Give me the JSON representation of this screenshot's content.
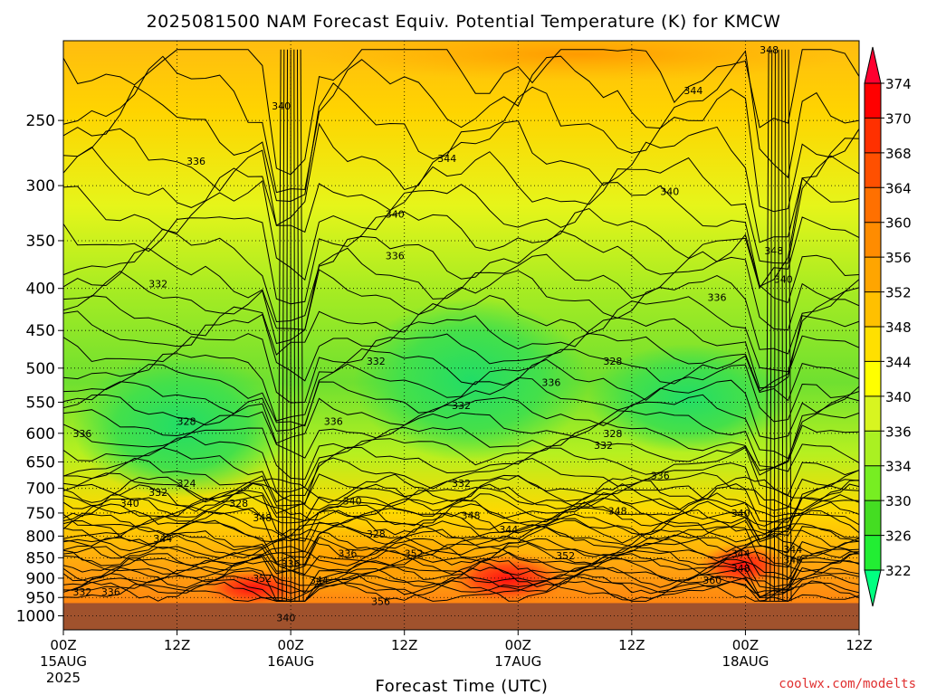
{
  "chart_data": {
    "type": "heatmap",
    "title": "2025081500 NAM Forecast Equiv. Potential Temperature (K) for KMCW",
    "xlabel": "Forecast Time (UTC)",
    "ylabel": "",
    "y_axis": {
      "scale": "pressure",
      "inverted": true,
      "range": [
        1040,
        200
      ],
      "ticks": [
        250,
        300,
        350,
        400,
        450,
        500,
        550,
        600,
        650,
        700,
        750,
        800,
        850,
        900,
        950,
        1000
      ]
    },
    "x_axis": {
      "range_hours": [
        0,
        84
      ],
      "ticks": [
        {
          "hour": 0,
          "label": "00Z",
          "sub": "15AUG",
          "sub2": "2025"
        },
        {
          "hour": 12,
          "label": "12Z",
          "sub": "",
          "sub2": ""
        },
        {
          "hour": 24,
          "label": "00Z",
          "sub": "16AUG",
          "sub2": ""
        },
        {
          "hour": 36,
          "label": "12Z",
          "sub": "",
          "sub2": ""
        },
        {
          "hour": 48,
          "label": "00Z",
          "sub": "17AUG",
          "sub2": ""
        },
        {
          "hour": 60,
          "label": "12Z",
          "sub": "",
          "sub2": ""
        },
        {
          "hour": 72,
          "label": "00Z",
          "sub": "18AUG",
          "sub2": ""
        },
        {
          "hour": 84,
          "label": "12Z",
          "sub": "",
          "sub2": ""
        }
      ]
    },
    "grid": true,
    "colorbar": {
      "levels": [
        322,
        326,
        330,
        334,
        336,
        340,
        344,
        348,
        352,
        356,
        360,
        364,
        368,
        370,
        374
      ],
      "colors": [
        "#00ff80",
        "#22ee33",
        "#44dd22",
        "#77ee22",
        "#aaf022",
        "#d8f520",
        "#ffff00",
        "#ffe000",
        "#ffc000",
        "#ffa500",
        "#ff8c00",
        "#ff7000",
        "#ff5000",
        "#ff3000",
        "#ff0000"
      ],
      "min_arrow_color": "#00ff80",
      "max_arrow_color": "#ff0030"
    },
    "ground_color": "#a0522d",
    "ground_below_hPa": 965,
    "contour_labels": [
      {
        "text": "340",
        "hour": 23.5,
        "p": 1005
      },
      {
        "text": "340",
        "hour": 23.0,
        "p": 240
      },
      {
        "text": "336",
        "hour": 14.0,
        "p": 280
      },
      {
        "text": "332",
        "hour": 10.0,
        "p": 395
      },
      {
        "text": "328",
        "hour": 13.0,
        "p": 580
      },
      {
        "text": "336",
        "hour": 2.0,
        "p": 600
      },
      {
        "text": "324",
        "hour": 13.0,
        "p": 690
      },
      {
        "text": "332",
        "hour": 10.0,
        "p": 708
      },
      {
        "text": "328",
        "hour": 18.5,
        "p": 730
      },
      {
        "text": "340",
        "hour": 7.0,
        "p": 730
      },
      {
        "text": "348",
        "hour": 21.0,
        "p": 760
      },
      {
        "text": "344",
        "hour": 10.5,
        "p": 805
      },
      {
        "text": "352",
        "hour": 21.0,
        "p": 900
      },
      {
        "text": "336",
        "hour": 24.0,
        "p": 865
      },
      {
        "text": "344",
        "hour": 27.0,
        "p": 905
      },
      {
        "text": "332",
        "hour": 2.0,
        "p": 935
      },
      {
        "text": "336",
        "hour": 5.0,
        "p": 935
      },
      {
        "text": "336",
        "hour": 30.0,
        "p": 840
      },
      {
        "text": "340",
        "hour": 30.5,
        "p": 725
      },
      {
        "text": "328",
        "hour": 33.0,
        "p": 795
      },
      {
        "text": "352",
        "hour": 37.0,
        "p": 840
      },
      {
        "text": "356",
        "hour": 33.5,
        "p": 960
      },
      {
        "text": "340",
        "hour": 35.0,
        "p": 325
      },
      {
        "text": "336",
        "hour": 35.0,
        "p": 365
      },
      {
        "text": "332",
        "hour": 33.0,
        "p": 490
      },
      {
        "text": "336",
        "hour": 28.5,
        "p": 580
      },
      {
        "text": "344",
        "hour": 40.5,
        "p": 278
      },
      {
        "text": "332",
        "hour": 42.0,
        "p": 555
      },
      {
        "text": "332",
        "hour": 42.0,
        "p": 690
      },
      {
        "text": "348",
        "hour": 43.0,
        "p": 755
      },
      {
        "text": "344",
        "hour": 47.0,
        "p": 785
      },
      {
        "text": "336",
        "hour": 51.5,
        "p": 520
      },
      {
        "text": "328",
        "hour": 58.0,
        "p": 490
      },
      {
        "text": "328",
        "hour": 58.0,
        "p": 600
      },
      {
        "text": "332",
        "hour": 57.0,
        "p": 620
      },
      {
        "text": "336",
        "hour": 63.0,
        "p": 675
      },
      {
        "text": "348",
        "hour": 58.5,
        "p": 745
      },
      {
        "text": "352",
        "hour": 53.0,
        "p": 845
      },
      {
        "text": "340",
        "hour": 64.0,
        "p": 305
      },
      {
        "text": "344",
        "hour": 66.5,
        "p": 230
      },
      {
        "text": "336",
        "hour": 69.0,
        "p": 410
      },
      {
        "text": "340",
        "hour": 71.5,
        "p": 750
      },
      {
        "text": "344",
        "hour": 71.5,
        "p": 840
      },
      {
        "text": "348",
        "hour": 71.5,
        "p": 875
      },
      {
        "text": "360",
        "hour": 68.5,
        "p": 905
      },
      {
        "text": "348",
        "hour": 74.5,
        "p": 205
      },
      {
        "text": "348",
        "hour": 75.0,
        "p": 360
      },
      {
        "text": "340",
        "hour": 76.0,
        "p": 390
      },
      {
        "text": "344",
        "hour": 77.0,
        "p": 830
      },
      {
        "text": "348",
        "hour": 77.0,
        "p": 855
      }
    ]
  },
  "credit": "coolwx.com/modelts"
}
